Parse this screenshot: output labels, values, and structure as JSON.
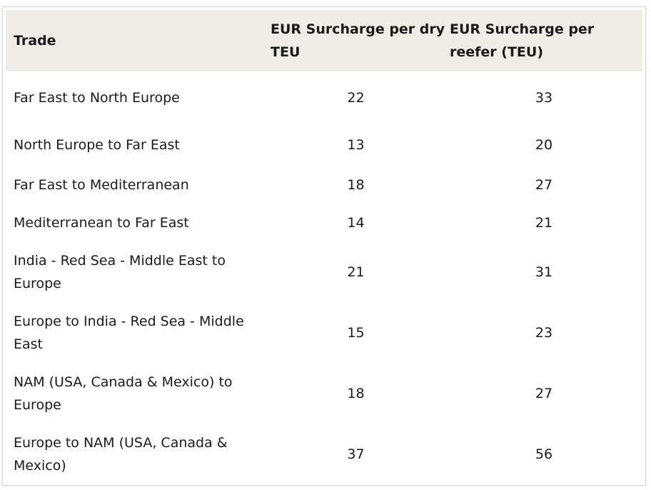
{
  "table": {
    "headers": {
      "trade": "Trade",
      "dry": "EUR Surcharge per dry TEU",
      "reefer": "EUR Surcharge per reefer (TEU)"
    },
    "rows": [
      {
        "trade": "Far East to North Europe",
        "dry": "22",
        "reefer": "33"
      },
      {
        "trade": "North Europe to Far East",
        "dry": "13",
        "reefer": "20"
      },
      {
        "trade": "Far East to Mediterranean",
        "dry": "18",
        "reefer": "27"
      },
      {
        "trade": "Mediterranean to Far East",
        "dry": "14",
        "reefer": "21"
      },
      {
        "trade": "India - Red Sea - Middle East to Europe",
        "dry": "21",
        "reefer": "31"
      },
      {
        "trade": "Europe to India - Red Sea - Middle East",
        "dry": "15",
        "reefer": "23"
      },
      {
        "trade": "NAM (USA, Canada & Mexico) to Europe",
        "dry": "18",
        "reefer": "27"
      },
      {
        "trade": "Europe to NAM (USA, Canada & Mexico)",
        "dry": "37",
        "reefer": "56"
      }
    ]
  },
  "colors": {
    "header_background": "#efede6",
    "border": "#d8d8d8"
  }
}
